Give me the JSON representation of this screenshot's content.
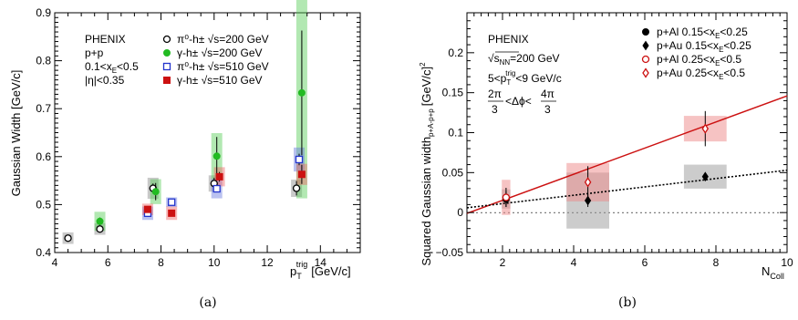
{
  "chart_data": [
    {
      "type": "scatter",
      "panel_caption": "(a)",
      "ylabel": "Gaussian Width [GeV/c]",
      "xlabel_main": "p",
      "xlabel_sub": "T",
      "xlabel_sup": "trig",
      "xlabel_unit": "[GeV/c]",
      "xlim": [
        4,
        15.5
      ],
      "ylim": [
        0.4,
        0.9
      ],
      "xticks": [
        "4",
        "6",
        "8",
        "10",
        "12",
        "14"
      ],
      "yticks": [
        "0.4",
        "0.5",
        "0.6",
        "0.7",
        "0.8",
        "0.9"
      ],
      "info": [
        "PHENIX",
        "p+p",
        "0.1<x",
        "<0.5",
        "|η|<0.35"
      ],
      "info_sub": "E",
      "legend": [
        {
          "label": "π⁰-h± √s=200 GeV",
          "marker": "open-circle",
          "color": "#000000"
        },
        {
          "label": "γ-h± √s=200 GeV",
          "marker": "filled-circle",
          "color": "#22bb22"
        },
        {
          "label": "π⁰-h± √s=510 GeV",
          "marker": "open-square",
          "color": "#2233cc"
        },
        {
          "label": "γ-h± √s=510 GeV",
          "marker": "filled-square",
          "color": "#cc1111"
        }
      ],
      "series": [
        {
          "name": "π⁰-h± √s=200 GeV",
          "marker": "open-circle",
          "color": "#000000",
          "box_color": "#888888",
          "points": [
            {
              "x": 4.5,
              "y": 0.43,
              "err": 0.004,
              "sys": 0.012
            },
            {
              "x": 5.7,
              "y": 0.449,
              "err": 0.004,
              "sys": 0.012
            },
            {
              "x": 7.7,
              "y": 0.534,
              "err": 0.01,
              "sys": 0.022
            },
            {
              "x": 10.0,
              "y": 0.544,
              "err": 0.012,
              "sys": 0.017
            },
            {
              "x": 13.1,
              "y": 0.534,
              "err": 0.015,
              "sys": 0.018
            }
          ]
        },
        {
          "name": "γ-h± √s=200 GeV",
          "marker": "filled-circle",
          "color": "#22bb22",
          "box_color": "#55cc55",
          "points": [
            {
              "x": 5.7,
              "y": 0.465,
              "err": 0.008,
              "sys": 0.02
            },
            {
              "x": 7.8,
              "y": 0.527,
              "err": 0.018,
              "sys": 0.026
            },
            {
              "x": 10.1,
              "y": 0.601,
              "err": 0.04,
              "sys": 0.048
            },
            {
              "x": 13.3,
              "y": 0.733,
              "err": 0.13,
              "sys": 0.22
            }
          ]
        },
        {
          "name": "π⁰-h± √s=510 GeV",
          "marker": "open-square",
          "color": "#2233cc",
          "box_color": "#6677dd",
          "points": [
            {
              "x": 7.5,
              "y": 0.482,
              "err": 0.004,
              "sys": 0.014
            },
            {
              "x": 8.4,
              "y": 0.505,
              "err": 0.004,
              "sys": 0.01
            },
            {
              "x": 10.1,
              "y": 0.533,
              "err": 0.006,
              "sys": 0.02
            },
            {
              "x": 13.2,
              "y": 0.594,
              "err": 0.012,
              "sys": 0.025
            }
          ]
        },
        {
          "name": "γ-h± √s=510 GeV",
          "marker": "filled-square",
          "color": "#cc1111",
          "box_color": "#ee6666",
          "points": [
            {
              "x": 7.5,
              "y": 0.49,
              "err": 0.005,
              "sys": 0.012
            },
            {
              "x": 8.4,
              "y": 0.482,
              "err": 0.005,
              "sys": 0.014
            },
            {
              "x": 10.2,
              "y": 0.558,
              "err": 0.01,
              "sys": 0.02
            },
            {
              "x": 13.3,
              "y": 0.563,
              "err": 0.02,
              "sys": 0.022
            }
          ]
        }
      ]
    },
    {
      "type": "scatter",
      "panel_caption": "(b)",
      "ylabel_main": "Squared Gaussian width",
      "ylabel_sub": "p+A-p+p",
      "ylabel_unit": "[GeV/c]",
      "ylabel_sup": "2",
      "xlabel_main": "N",
      "xlabel_sub": "Coll",
      "xlim": [
        1,
        10
      ],
      "ylim": [
        -0.05,
        0.25
      ],
      "xticks": [
        "2",
        "4",
        "6",
        "8",
        "10"
      ],
      "yticks": [
        "−0.05",
        "0",
        "0.05",
        "0.1",
        "0.15",
        "0.2"
      ],
      "info": [
        "PHENIX",
        "√s",
        "=200 GeV",
        "5<p",
        "<9 GeV/c",
        "2π",
        "3",
        "<Δϕ<",
        "4π",
        "3"
      ],
      "info_sub": [
        "NN",
        "T"
      ],
      "info_sup": "trig",
      "legend": [
        {
          "label_main": "p+Al 0.15<x",
          "label_sub": "E",
          "label_tail": "<0.25",
          "marker": "filled-circle",
          "color": "#000000"
        },
        {
          "label_main": "p+Au 0.15<x",
          "label_sub": "E",
          "label_tail": "<0.25",
          "marker": "filled-diamond",
          "color": "#000000"
        },
        {
          "label_main": "p+Al 0.25<x",
          "label_sub": "E",
          "label_tail": "<0.5",
          "marker": "open-circle",
          "color": "#cc1111"
        },
        {
          "label_main": "p+Au 0.25<x",
          "label_sub": "E",
          "label_tail": "<0.5",
          "marker": "open-diamond",
          "color": "#cc1111"
        }
      ],
      "series": [
        {
          "name": "p+Al 0.15<x_E<0.25",
          "marker": "filled-circle",
          "color": "#000000",
          "box_color": "#999999",
          "box_half_width": 0.12,
          "points": [
            {
              "x": 2.1,
              "y": 0.017,
              "err": 0.01,
              "sys": 0.012
            }
          ]
        },
        {
          "name": "p+Au 0.15<x_E<0.25",
          "marker": "filled-diamond",
          "color": "#000000",
          "box_color": "#999999",
          "box_half_width": 0.6,
          "points": [
            {
              "x": 4.4,
              "y": 0.015,
              "err": 0.008,
              "sys": 0.035
            },
            {
              "x": 7.7,
              "y": 0.045,
              "err": 0.004,
              "sys": 0.015
            }
          ]
        },
        {
          "name": "p+Al 0.25<x_E<0.5",
          "marker": "open-circle",
          "color": "#cc1111",
          "box_color": "#ee8888",
          "box_half_width": 0.12,
          "points": [
            {
              "x": 2.1,
              "y": 0.019,
              "err": 0.012,
              "sys": 0.022
            }
          ]
        },
        {
          "name": "p+Au 0.25<x_E<0.5",
          "marker": "open-diamond",
          "color": "#cc1111",
          "box_color": "#ee8888",
          "box_half_width": 0.6,
          "points": [
            {
              "x": 4.4,
              "y": 0.038,
              "err": 0.02,
              "sys": 0.024
            },
            {
              "x": 7.7,
              "y": 0.105,
              "err": 0.022,
              "sys": 0.016
            }
          ]
        }
      ],
      "lines": [
        {
          "style": "solid",
          "color": "#cc1111",
          "x": [
            1,
            10
          ],
          "y": [
            -0.001,
            0.146
          ]
        },
        {
          "style": "dotted",
          "color": "#000000",
          "x": [
            1,
            10
          ],
          "y": [
            0.006,
            0.053
          ]
        }
      ],
      "zero_line": true
    }
  ]
}
